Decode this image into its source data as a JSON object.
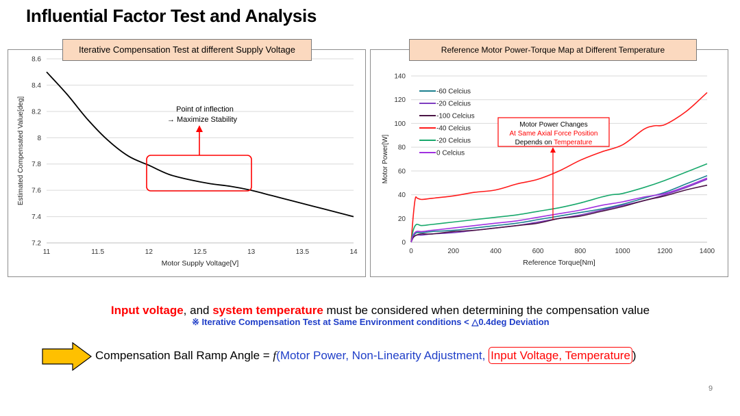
{
  "slide": {
    "title": "Influential Factor Test and Analysis",
    "page_number": "9"
  },
  "left_chart": {
    "panel_title": "Iterative Compensation Test at different Supply Voltage",
    "annotation_line1": "Point of inflection",
    "annotation_line2": "→ Maximize Stability"
  },
  "right_chart": {
    "panel_title": "Reference Motor Power-Torque Map at Different Temperature",
    "annotation_line1": "Motor Power Changes",
    "annotation_line2": "At Same Axial Force Position",
    "annotation_line3_a": "Depends on ",
    "annotation_line3_b": "Temperature"
  },
  "message": {
    "part1": "Input voltage",
    "part2": ", and ",
    "part3": "system temperature",
    "part4": " must be considered when determining the compensation value"
  },
  "note": "※ Iterative Compensation Test at Same Environment conditions < △0.4deg Deviation",
  "formula": {
    "prefix": "Compensation Ball Ramp Angle = ",
    "fn": "f",
    "open": "(",
    "blue_part": "Motor Power, Non-Linearity Adjustment,",
    "boxed_part": "Input Voltage, Temperature",
    "close": ")"
  },
  "colors": {
    "accent_red": "#ff0000",
    "accent_blue": "#1f3ec8",
    "title_box": "#fbd9bf",
    "arrow_fill": "#ffc000"
  },
  "chart_data": [
    {
      "type": "line",
      "xlabel": "Motor Supply Voltage[V]",
      "ylabel": "Estimated Compensated Value[deg]",
      "xlim": [
        11,
        14
      ],
      "ylim": [
        7.2,
        8.6
      ],
      "xticks": [
        "11",
        "11.5",
        "12",
        "12.5",
        "13",
        "13.5",
        "14"
      ],
      "yticks": [
        "7.2",
        "7.4",
        "7.6",
        "7.8",
        "8",
        "8.2",
        "8.4",
        "8.6"
      ],
      "grid": true,
      "series": [
        {
          "color": "#000000",
          "x": [
            11.0,
            11.2,
            11.4,
            11.6,
            11.8,
            12.0,
            12.2,
            12.4,
            12.6,
            12.8,
            13.0,
            13.2,
            13.4,
            13.6,
            13.8,
            14.0
          ],
          "y": [
            8.5,
            8.33,
            8.14,
            7.98,
            7.86,
            7.79,
            7.72,
            7.68,
            7.65,
            7.63,
            7.6,
            7.56,
            7.52,
            7.48,
            7.44,
            7.4
          ]
        }
      ]
    },
    {
      "type": "line",
      "xlabel": "Reference Torque[Nm]",
      "ylabel": "Motor Power[W]",
      "xlim": [
        0,
        1400
      ],
      "ylim": [
        0,
        140
      ],
      "xticks": [
        "0",
        "200",
        "400",
        "600",
        "800",
        "1000",
        "1200",
        "1400"
      ],
      "yticks": [
        "0",
        "20",
        "40",
        "60",
        "80",
        "100",
        "120",
        "140"
      ],
      "grid": true,
      "legend": "top-left",
      "series": [
        {
          "name": "-60 Celcius",
          "color": "#1b7f8f",
          "x": [
            0,
            10,
            25,
            50,
            100,
            200,
            300,
            400,
            500,
            600,
            700,
            800,
            900,
            1000,
            1100,
            1200,
            1300,
            1400
          ],
          "y": [
            0,
            5,
            8,
            8,
            9,
            10,
            12,
            14,
            16,
            19,
            22,
            25,
            28,
            32,
            37,
            42,
            49,
            56
          ]
        },
        {
          "name": "-20 Celcius",
          "color": "#7d3cbf",
          "x": [
            0,
            10,
            25,
            50,
            100,
            200,
            300,
            400,
            500,
            600,
            700,
            800,
            900,
            1000,
            1100,
            1200,
            1300,
            1400
          ],
          "y": [
            0,
            4,
            6,
            6,
            7,
            8,
            10,
            12,
            14,
            17,
            20,
            23,
            27,
            31,
            35,
            40,
            46,
            53
          ]
        },
        {
          "name": "-100 Celcius",
          "color": "#4b1445",
          "x": [
            0,
            10,
            25,
            50,
            100,
            200,
            300,
            400,
            500,
            600,
            700,
            800,
            900,
            1000,
            1100,
            1200,
            1300,
            1400
          ],
          "y": [
            0,
            4,
            6,
            7,
            7,
            9,
            10,
            12,
            14,
            16,
            20,
            22,
            26,
            30,
            35,
            39,
            44,
            48
          ]
        },
        {
          "name": "-40 Celcius",
          "color": "#ff1a1a",
          "x": [
            0,
            10,
            20,
            30,
            50,
            100,
            200,
            300,
            400,
            500,
            600,
            700,
            800,
            900,
            1000,
            1100,
            1150,
            1200,
            1300,
            1400
          ],
          "y": [
            0,
            22,
            37,
            37,
            36,
            37,
            39,
            42,
            44,
            49,
            53,
            60,
            69,
            76,
            82,
            95,
            98,
            99,
            110,
            126
          ]
        },
        {
          "name": "-20 Celcius",
          "color": "#17a86b",
          "x": [
            0,
            10,
            25,
            50,
            100,
            200,
            300,
            400,
            500,
            600,
            700,
            800,
            900,
            950,
            1000,
            1100,
            1200,
            1300,
            1400
          ],
          "y": [
            0,
            10,
            15,
            14,
            15,
            17,
            19,
            21,
            23,
            26,
            29,
            33,
            38,
            40,
            41,
            46,
            52,
            59,
            66
          ]
        },
        {
          "name": "0 Celcius",
          "color": "#a030e0",
          "x": [
            0,
            10,
            25,
            50,
            100,
            200,
            300,
            400,
            500,
            600,
            700,
            800,
            900,
            1000,
            1100,
            1200,
            1300,
            1400
          ],
          "y": [
            0,
            6,
            9,
            9,
            10,
            12,
            14,
            16,
            18,
            21,
            24,
            27,
            31,
            34,
            38,
            41,
            47,
            54
          ]
        }
      ]
    }
  ]
}
